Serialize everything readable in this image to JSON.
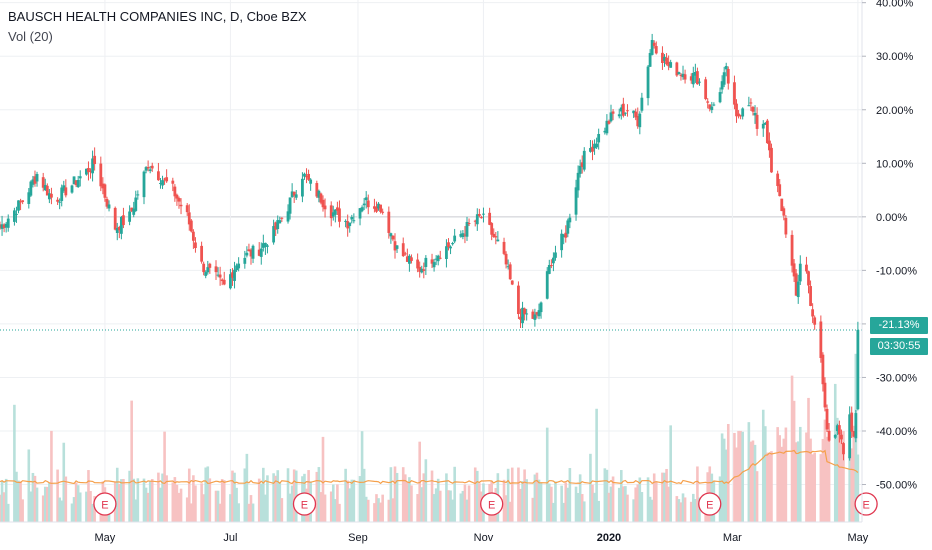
{
  "header": {
    "title": "BAUSCH HEALTH COMPANIES INC, D, Cboe BZX",
    "indicator": "Vol (20)"
  },
  "colors": {
    "up": "#26a69a",
    "down": "#ef5350",
    "up_bar": "#b8e0db",
    "down_bar": "#f7c2c2",
    "vol_ma": "#f5a04b",
    "tag": "#26a69a",
    "event": "#e0364f",
    "grid": "#eef0f3"
  },
  "price_tag": {
    "value": "-21.13%"
  },
  "countdown": {
    "value": "03:30:55"
  },
  "events": {
    "label": "E",
    "dates": [
      "2019-05-01",
      "2019-08-06",
      "2019-11-05",
      "2020-02-19",
      "2020-05-05"
    ]
  },
  "chart_data": {
    "type": "candlestick",
    "title": "BAUSCH HEALTH COMPANIES INC, D, Cboe BZX",
    "y_unit": "percent change",
    "ylim": [
      -57,
      40.5
    ],
    "y_ticks": [
      "40.00%",
      "30.00%",
      "20.00%",
      "10.00%",
      "0.00%",
      "-10.00%",
      "-20.00%",
      "-30.00%",
      "-40.00%",
      "-50.00%"
    ],
    "y_tick_values": [
      40,
      30,
      20,
      10,
      0,
      -10,
      -20,
      -30,
      -40,
      -50
    ],
    "x_ticks": [
      "May",
      "Jul",
      "Sep",
      "Nov",
      "2020",
      "Mar",
      "May"
    ],
    "x_tick_dates": [
      "2019-05-01",
      "2019-07-01",
      "2019-09-01",
      "2019-11-01",
      "2020-01-01",
      "2020-03-01",
      "2020-05-01"
    ],
    "x_range": [
      "2019-03-11",
      "2020-05-03"
    ],
    "baseline": 0,
    "last_value": -21.13,
    "close_path": [
      [
        "2019-03-11",
        -2
      ],
      [
        "2019-03-22",
        3
      ],
      [
        "2019-03-29",
        8
      ],
      [
        "2019-04-06",
        3
      ],
      [
        "2019-04-15",
        6
      ],
      [
        "2019-04-26",
        10
      ],
      [
        "2019-05-06",
        -2
      ],
      [
        "2019-05-13",
        0
      ],
      [
        "2019-05-22",
        10
      ],
      [
        "2019-06-03",
        5
      ],
      [
        "2019-06-10",
        0
      ],
      [
        "2019-06-17",
        -9
      ],
      [
        "2019-06-28",
        -13
      ],
      [
        "2019-07-05",
        -8
      ],
      [
        "2019-07-15",
        -6
      ],
      [
        "2019-07-22",
        -3
      ],
      [
        "2019-07-29",
        2
      ],
      [
        "2019-08-05",
        8
      ],
      [
        "2019-08-09",
        6
      ],
      [
        "2019-08-19",
        1
      ],
      [
        "2019-08-27",
        -1
      ],
      [
        "2019-09-04",
        3
      ],
      [
        "2019-09-12",
        2
      ],
      [
        "2019-09-20",
        -6
      ],
      [
        "2019-09-30",
        -10
      ],
      [
        "2019-10-09",
        -7
      ],
      [
        "2019-10-17",
        -5
      ],
      [
        "2019-10-24",
        -2
      ],
      [
        "2019-10-31",
        0
      ],
      [
        "2019-11-08",
        -5
      ],
      [
        "2019-11-12",
        -9
      ],
      [
        "2019-11-18",
        -18
      ],
      [
        "2019-11-27",
        -19
      ],
      [
        "2019-12-04",
        -8
      ],
      [
        "2019-12-11",
        -3
      ],
      [
        "2019-12-18",
        10
      ],
      [
        "2020-01-03",
        19
      ],
      [
        "2020-01-10",
        20
      ],
      [
        "2020-01-15",
        18
      ],
      [
        "2020-01-22",
        33
      ],
      [
        "2020-01-30",
        28
      ],
      [
        "2020-02-06",
        27
      ],
      [
        "2020-02-13",
        26
      ],
      [
        "2020-02-20",
        20
      ],
      [
        "2020-02-27",
        27
      ],
      [
        "2020-03-03",
        18
      ],
      [
        "2020-03-08",
        23
      ],
      [
        "2020-03-13",
        17
      ],
      [
        "2020-03-17",
        18
      ],
      [
        "2020-03-20",
        8
      ],
      [
        "2020-03-23",
        5
      ],
      [
        "2020-03-26",
        0
      ],
      [
        "2020-03-29",
        -7
      ],
      [
        "2020-04-01",
        -15
      ],
      [
        "2020-04-04",
        -5
      ],
      [
        "2020-04-07",
        -13
      ],
      [
        "2020-04-10",
        -21
      ],
      [
        "2020-04-13",
        -27
      ],
      [
        "2020-04-16",
        -40
      ],
      [
        "2020-04-18",
        -43
      ],
      [
        "2020-04-21",
        -38
      ],
      [
        "2020-04-24",
        -45
      ],
      [
        "2020-04-27",
        -38
      ],
      [
        "2020-04-29",
        -42
      ],
      [
        "2020-05-01",
        -31
      ],
      [
        "2020-05-03",
        -21.13
      ]
    ],
    "volume": {
      "ma_period": 20,
      "ma_level": "flat near lower third of volume pane, rising in Mar"
    }
  }
}
